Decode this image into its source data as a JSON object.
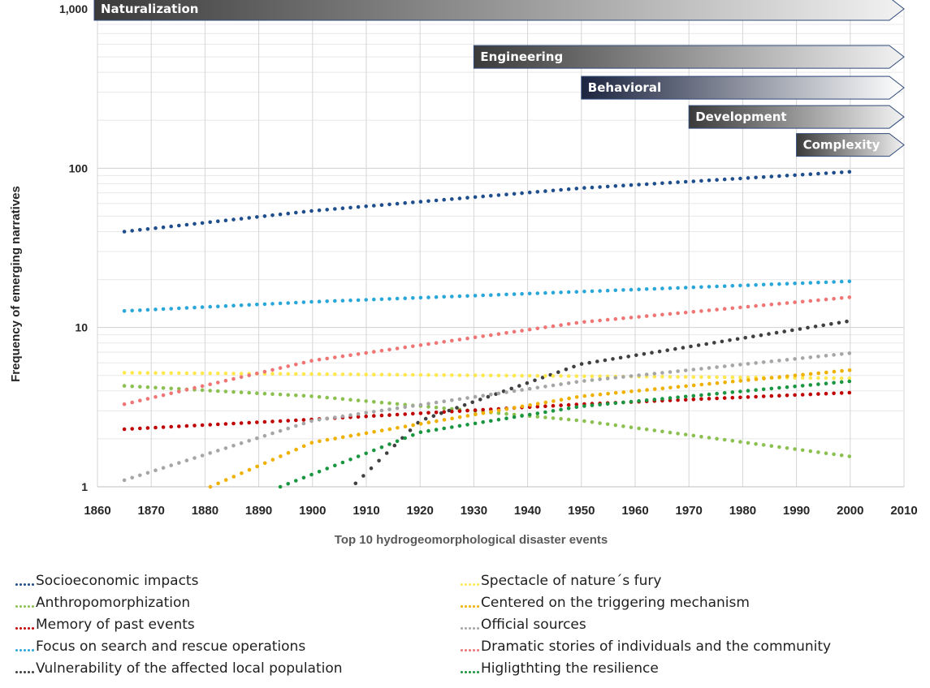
{
  "chart_data": {
    "type": "scatter",
    "ylabel": "Frequency of emerging narratives",
    "xlabel": "Top 10 hydrogeomorphological disaster events",
    "xlim": [
      1860,
      2010
    ],
    "ylim": [
      1,
      1000
    ],
    "y_scale": "log",
    "x_ticks": [
      "1860",
      "1870",
      "1880",
      "1890",
      "1900",
      "1910",
      "1920",
      "1930",
      "1940",
      "1950",
      "1960",
      "1970",
      "1980",
      "1990",
      "2000",
      "2010"
    ],
    "y_ticks": [
      {
        "value": 1,
        "label": "1"
      },
      {
        "value": 10,
        "label": "10"
      },
      {
        "value": 100,
        "label": "100"
      },
      {
        "value": 1000,
        "label": "1,000"
      }
    ],
    "grid": true,
    "periods": [
      {
        "label": "Naturalization",
        "start": 1860,
        "end": 2010,
        "level": 1000,
        "dark": "#3a3a3a",
        "light": "#f2f2f2"
      },
      {
        "label": "Engineering",
        "start": 1930,
        "end": 2010,
        "level": 500,
        "dark": "#3a3a3a",
        "light": "#f2f2f2"
      },
      {
        "label": "Behavioral",
        "start": 1950,
        "end": 2010,
        "level": 320,
        "dark": "#1c2540",
        "light": "#ffffff"
      },
      {
        "label": "Development",
        "start": 1970,
        "end": 2010,
        "level": 210,
        "dark": "#3a3a3a",
        "light": "#f2f2f2"
      },
      {
        "label": "Complexity",
        "start": 1990,
        "end": 2010,
        "level": 140,
        "dark": "#3a3a3a",
        "light": "#f2f2f2"
      }
    ],
    "series": [
      {
        "name": "Socioeconomic impacts",
        "color": "#1f4e8c",
        "x": [
          1865,
          1900,
          1950,
          2000
        ],
        "y": [
          40,
          54,
          75,
          95
        ]
      },
      {
        "name": "Anthropomorphization",
        "color": "#8cc152",
        "x": [
          1865,
          1900,
          1950,
          2000
        ],
        "y": [
          4.3,
          3.7,
          2.6,
          1.55
        ]
      },
      {
        "name": "Memory of past events",
        "color": "#c00000",
        "x": [
          1865,
          1900,
          1950,
          2000
        ],
        "y": [
          2.3,
          2.65,
          3.3,
          3.9
        ]
      },
      {
        "name": "Focus on search and rescue operations",
        "color": "#2aa7d9",
        "x": [
          1865,
          1900,
          1950,
          2000
        ],
        "y": [
          12.7,
          14.5,
          16.8,
          19.5
        ]
      },
      {
        "name": "Vulnerability of the affected local population",
        "color": "#404040",
        "x": [
          1908,
          1920,
          1950,
          2000
        ],
        "y": [
          1.05,
          2.6,
          5.9,
          11.0
        ]
      },
      {
        "name": "Spectacle of nature´s fury",
        "color": "#ffe84d",
        "x": [
          1865,
          1900,
          1950,
          2000
        ],
        "y": [
          5.2,
          5.1,
          4.95,
          4.8
        ]
      },
      {
        "name": "Centered on the triggering mechanism",
        "color": "#f0b000",
        "x": [
          1881,
          1900,
          1950,
          2000
        ],
        "y": [
          1.0,
          1.9,
          3.7,
          5.4
        ]
      },
      {
        "name": "Official sources",
        "color": "#a6a6a6",
        "x": [
          1865,
          1900,
          1950,
          2000
        ],
        "y": [
          1.1,
          2.6,
          4.6,
          6.9
        ]
      },
      {
        "name": "Dramatic stories of individuals and the community",
        "color": "#f07575",
        "x": [
          1865,
          1900,
          1950,
          2000
        ],
        "y": [
          3.3,
          6.2,
          10.8,
          15.5
        ]
      },
      {
        "name": "Higligthting the resilience",
        "color": "#1a9641",
        "x": [
          1894,
          1920,
          1950,
          2000
        ],
        "y": [
          1.0,
          2.2,
          3.2,
          4.6
        ]
      }
    ]
  }
}
